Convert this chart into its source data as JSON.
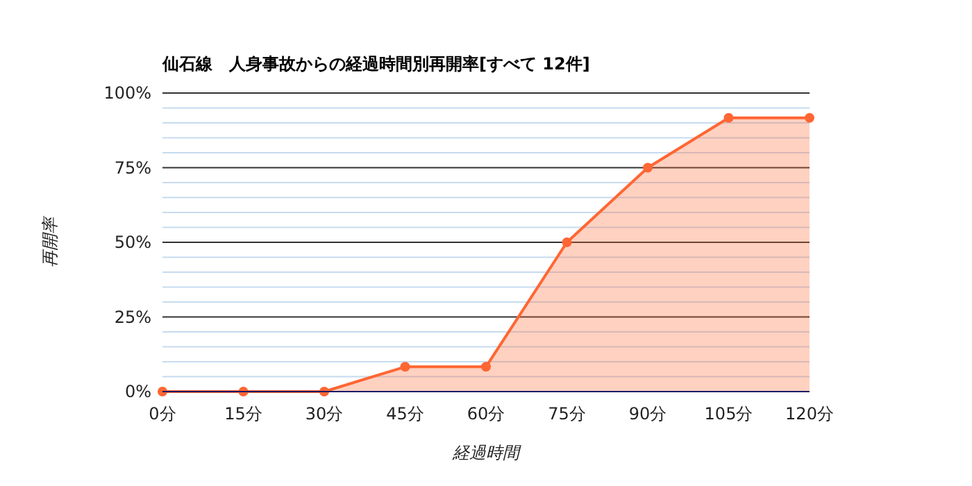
{
  "chart_data": {
    "type": "area",
    "title": "仙石線　人身事故からの経過時間別再開率[すべて 12件]",
    "xlabel": "経過時間",
    "ylabel": "再開率",
    "x": [
      0,
      15,
      30,
      45,
      60,
      75,
      90,
      105,
      120
    ],
    "series": [
      {
        "color": "#ff6633",
        "values": [
          0,
          0,
          0,
          8.3,
          8.3,
          50,
          75,
          91.7,
          91.7
        ]
      }
    ],
    "xlim": [
      0,
      120
    ],
    "xticks": [
      {
        "value": 0,
        "label": "0分"
      },
      {
        "value": 15,
        "label": "15分"
      },
      {
        "value": 30,
        "label": "30分"
      },
      {
        "value": 45,
        "label": "45分"
      },
      {
        "value": 60,
        "label": "60分"
      },
      {
        "value": 75,
        "label": "75分"
      },
      {
        "value": 90,
        "label": "90分"
      },
      {
        "value": 105,
        "label": "105分"
      },
      {
        "value": 120,
        "label": "120分"
      }
    ],
    "ylim": [
      0,
      100
    ],
    "yticks": [
      {
        "value": 0,
        "label": "0%"
      },
      {
        "value": 5,
        "label": null
      },
      {
        "value": 10,
        "label": null
      },
      {
        "value": 15,
        "label": null
      },
      {
        "value": 20,
        "label": null
      },
      {
        "value": 25,
        "label": "25%"
      },
      {
        "value": 30,
        "label": null
      },
      {
        "value": 35,
        "label": null
      },
      {
        "value": 40,
        "label": null
      },
      {
        "value": 45,
        "label": null
      },
      {
        "value": 50,
        "label": "50%"
      },
      {
        "value": 55,
        "label": null
      },
      {
        "value": 60,
        "label": null
      },
      {
        "value": 65,
        "label": null
      },
      {
        "value": 70,
        "label": null
      },
      {
        "value": 75,
        "label": "75%"
      },
      {
        "value": 80,
        "label": null
      },
      {
        "value": 85,
        "label": null
      },
      {
        "value": 90,
        "label": null
      },
      {
        "value": 95,
        "label": null
      },
      {
        "value": 100,
        "label": "100%"
      }
    ],
    "grid": "y",
    "marker": "circle",
    "line_style": "solid"
  }
}
